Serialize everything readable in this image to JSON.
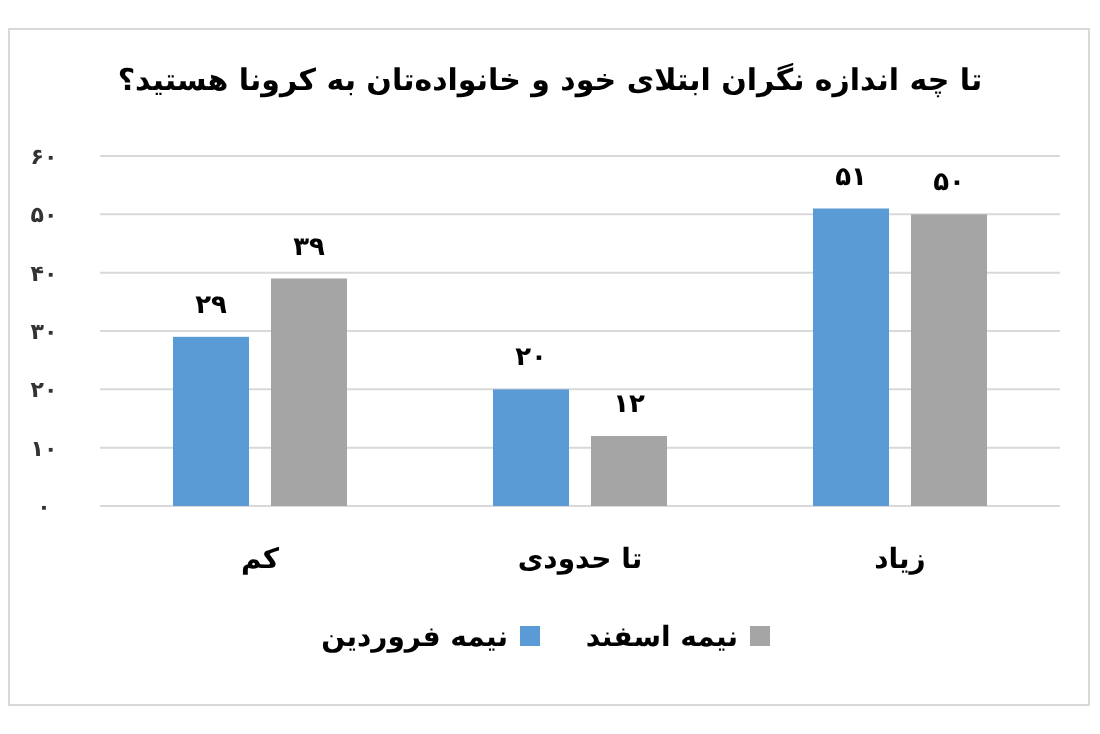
{
  "chart_data": {
    "type": "bar",
    "title": "تا چه اندازه نگران ابتلای خود و خانواده‌تان به کرونا هستید؟",
    "categories": [
      "کم",
      "تا حدودی",
      "زیاد"
    ],
    "series": [
      {
        "name": "نیمه فروردین",
        "color": "#5b9bd5",
        "values": [
          29,
          20,
          51
        ],
        "value_labels": [
          "۲۹",
          "۲۰",
          "۵۱"
        ]
      },
      {
        "name": "نیمه اسفند",
        "color": "#a5a5a5",
        "values": [
          39,
          12,
          50
        ],
        "value_labels": [
          "۳۹",
          "۱۲",
          "۵۰"
        ]
      }
    ],
    "ylim": [
      0,
      60
    ],
    "yticks": [
      {
        "value": 0,
        "label": "۰"
      },
      {
        "value": 10,
        "label": "۱۰"
      },
      {
        "value": 20,
        "label": "۲۰"
      },
      {
        "value": 30,
        "label": "۳۰"
      },
      {
        "value": 40,
        "label": "۴۰"
      },
      {
        "value": 50,
        "label": "۵۰"
      },
      {
        "value": 60,
        "label": "۶۰"
      }
    ],
    "grid": "y",
    "legend": "bottom"
  }
}
